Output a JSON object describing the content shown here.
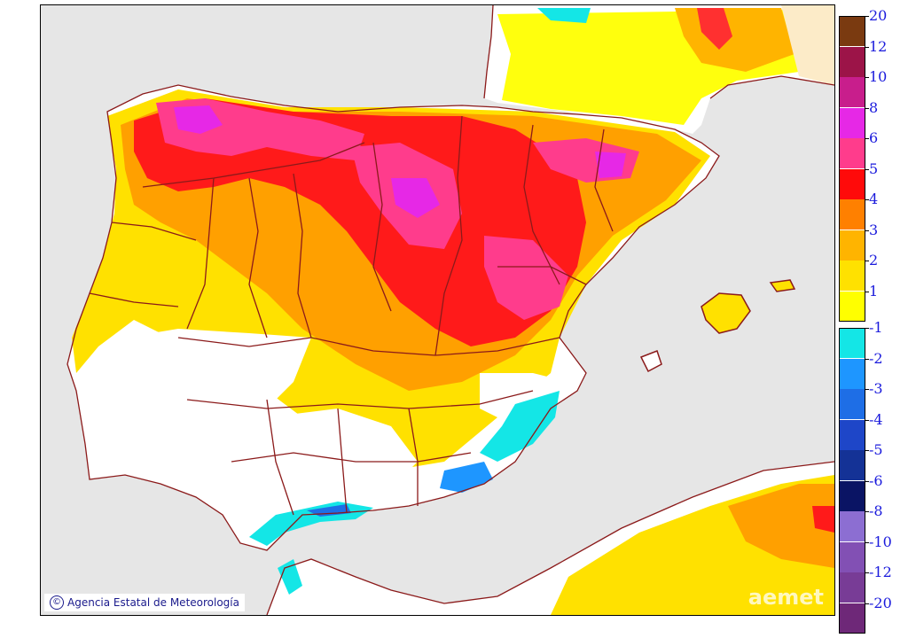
{
  "credit": {
    "symbol": "©",
    "text": "Agencia Estatal de Meteorología"
  },
  "watermark": "aemet",
  "legend": {
    "positive": [
      {
        "label": "20",
        "color": "#7a3a10"
      },
      {
        "label": "12",
        "color": "#9c1448"
      },
      {
        "label": "10",
        "color": "#c81e8c"
      },
      {
        "label": "8",
        "color": "#e628e6"
      },
      {
        "label": "6",
        "color": "#ff3c8c"
      },
      {
        "label": "5",
        "color": "#ff0a0a"
      },
      {
        "label": "4",
        "color": "#ff8000"
      },
      {
        "label": "3",
        "color": "#ffb400"
      },
      {
        "label": "2",
        "color": "#ffe100"
      },
      {
        "label": "1",
        "color": "#ffff00"
      }
    ],
    "negative": [
      {
        "label": "-1",
        "color": "#14e6e6"
      },
      {
        "label": "-2",
        "color": "#1e96ff"
      },
      {
        "label": "-3",
        "color": "#1e6ee6"
      },
      {
        "label": "-4",
        "color": "#1e46c8"
      },
      {
        "label": "-5",
        "color": "#143296"
      },
      {
        "label": "-6",
        "color": "#0a1464"
      },
      {
        "label": "-8",
        "color": "#8c6ed2"
      },
      {
        "label": "-10",
        "color": "#8250b4"
      },
      {
        "label": "-12",
        "color": "#783c96"
      },
      {
        "label": "-20",
        "color": "#6e2878"
      }
    ]
  },
  "colors": {
    "sea": "#e6e6e6",
    "land_base": "#ffffff",
    "border": "#8b1a1a"
  }
}
